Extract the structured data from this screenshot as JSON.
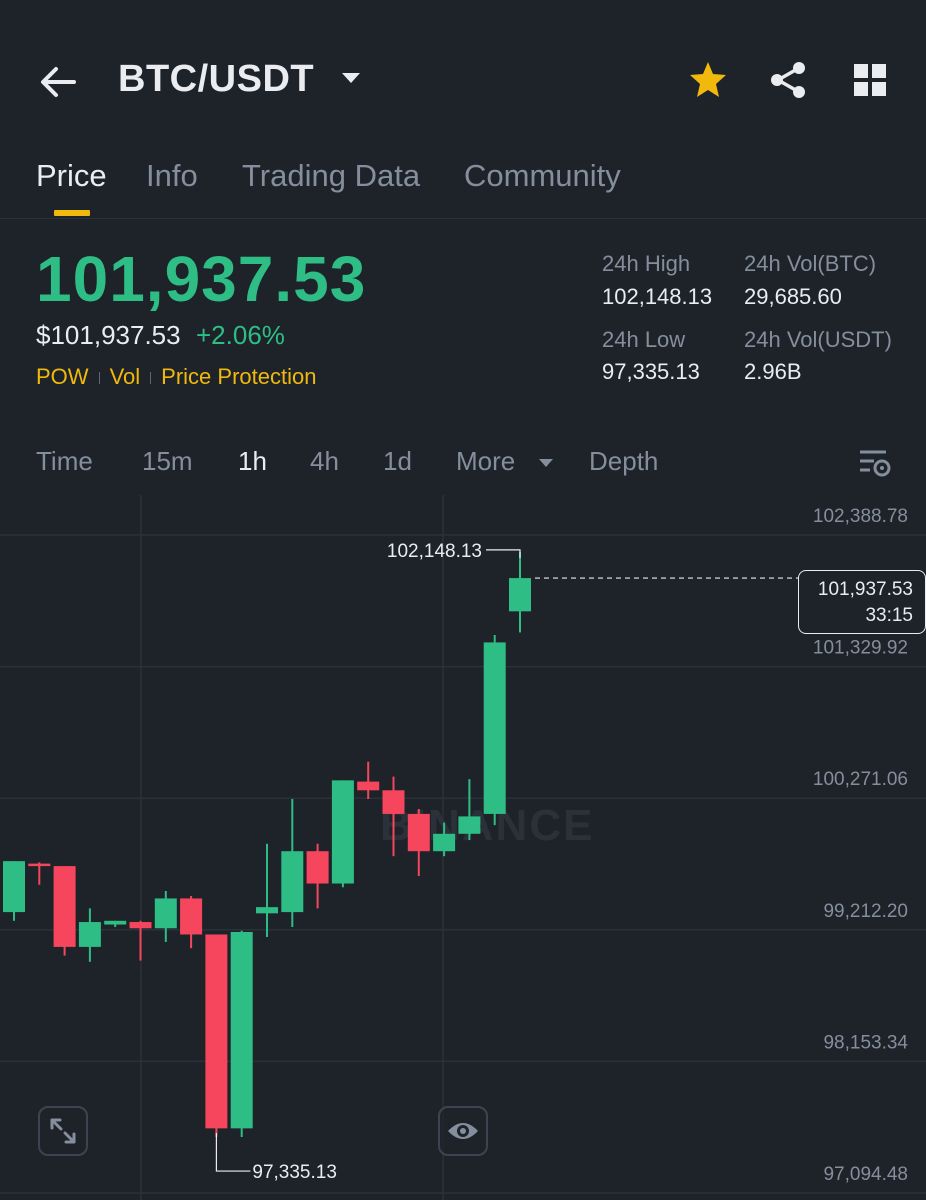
{
  "header": {
    "title": "BTC/USDT",
    "back_icon": "back-arrow-icon",
    "star_icon": "star-icon",
    "share_icon": "share-icon",
    "grid_icon": "grid-icon",
    "star_color": "#f0b90b"
  },
  "tabs": [
    {
      "label": "Price",
      "active": true
    },
    {
      "label": "Info",
      "active": false
    },
    {
      "label": "Trading Data",
      "active": false
    },
    {
      "label": "Community",
      "active": false
    }
  ],
  "price": {
    "last": "101,937.53",
    "usd": "$101,937.53",
    "change": "+2.06%",
    "tags": [
      "POW",
      "Vol",
      "Price Protection"
    ],
    "up_color": "#2ebd85",
    "down_color": "#f6465d"
  },
  "stats": {
    "high_label": "24h High",
    "high_value": "102,148.13",
    "vol_btc_label": "24h Vol(BTC)",
    "vol_btc_value": "29,685.60",
    "low_label": "24h Low",
    "low_value": "97,335.13",
    "vol_usdt_label": "24h Vol(USDT)",
    "vol_usdt_value": "2.96B"
  },
  "timeframes": {
    "items": [
      "Time",
      "15m",
      "1h",
      "4h",
      "1d",
      "More",
      "Depth"
    ],
    "active": "1h"
  },
  "chart_data": {
    "type": "candlestick",
    "interval": "1h",
    "y_axis_labels": [
      "102,388.78",
      "101,329.92",
      "100,271.06",
      "99,212.20",
      "98,153.34",
      "97,094.48"
    ],
    "ylim": [
      97094.48,
      102388.78
    ],
    "current_price": "101,937.53",
    "countdown": "33:15",
    "high_marker": "102,148.13",
    "low_marker": "97,335.13",
    "watermark": "BINANCE",
    "candles": [
      {
        "o": 99250,
        "h": 99660,
        "l": 99180,
        "c": 99660
      },
      {
        "o": 99640,
        "h": 99650,
        "l": 99470,
        "c": 99620
      },
      {
        "o": 99620,
        "h": 99620,
        "l": 98900,
        "c": 98970
      },
      {
        "o": 98970,
        "h": 99280,
        "l": 98850,
        "c": 99170
      },
      {
        "o": 99150,
        "h": 99180,
        "l": 99130,
        "c": 99180
      },
      {
        "o": 99170,
        "h": 99180,
        "l": 98860,
        "c": 99120
      },
      {
        "o": 99120,
        "h": 99420,
        "l": 99010,
        "c": 99360
      },
      {
        "o": 99360,
        "h": 99380,
        "l": 98960,
        "c": 99070
      },
      {
        "o": 99070,
        "h": 99070,
        "l": 97440,
        "c": 97510
      },
      {
        "o": 97510,
        "h": 99100,
        "l": 97440,
        "c": 99090
      },
      {
        "o": 99240,
        "h": 99800,
        "l": 99050,
        "c": 99290
      },
      {
        "o": 99250,
        "h": 100160,
        "l": 99130,
        "c": 99740
      },
      {
        "o": 99740,
        "h": 99800,
        "l": 99280,
        "c": 99480
      },
      {
        "o": 99480,
        "h": 100310,
        "l": 99450,
        "c": 100310
      },
      {
        "o": 100300,
        "h": 100460,
        "l": 100160,
        "c": 100230
      },
      {
        "o": 100230,
        "h": 100340,
        "l": 99700,
        "c": 100040
      },
      {
        "o": 100040,
        "h": 100080,
        "l": 99540,
        "c": 99740
      },
      {
        "o": 99740,
        "h": 99970,
        "l": 99700,
        "c": 99880
      },
      {
        "o": 99880,
        "h": 100320,
        "l": 99830,
        "c": 100020
      },
      {
        "o": 100040,
        "h": 101480,
        "l": 99950,
        "c": 101420
      },
      {
        "o": 101670,
        "h": 102148.13,
        "l": 101500,
        "c": 101937.53
      }
    ]
  }
}
